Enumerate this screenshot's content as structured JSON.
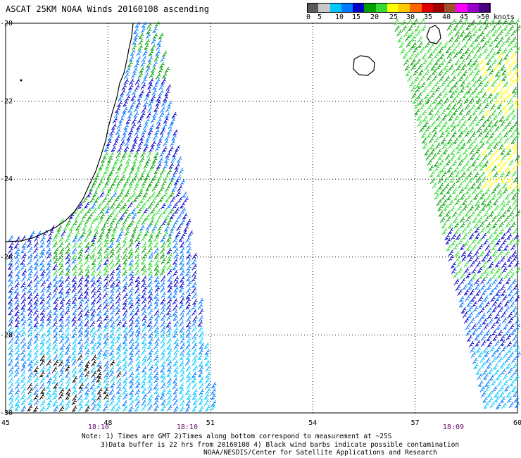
{
  "title": "ASCAT 25KM NOAA Winds 20160108 ascending",
  "legend": {
    "labels": [
      "0",
      "5",
      "10",
      "15",
      "20",
      "25",
      "30",
      "35",
      "40",
      "45",
      ">50 knots"
    ],
    "colors": [
      "#5a5a5a",
      "#c8c8c8",
      "#00c8ff",
      "#0078ff",
      "#0000c8",
      "#00a000",
      "#32dc32",
      "#ffff00",
      "#ffc800",
      "#ff6400",
      "#dc0000",
      "#a00000",
      "#a05028",
      "#ff00ff",
      "#9600c8",
      "#4b0082"
    ]
  },
  "map": {
    "x_ticks": [
      "45",
      "48",
      "51",
      "54",
      "57",
      "60"
    ],
    "y_ticks": [
      "-20",
      "-22",
      "-24",
      "-26",
      "-28",
      "-30"
    ],
    "times": [
      {
        "label": "18:10",
        "lon": 47.7
      },
      {
        "label": "18:10",
        "lon": 50.3
      },
      {
        "label": "18:09",
        "lon": 58.1
      }
    ]
  },
  "notes": {
    "line1": "Note: 1) Times are GMT 2)Times along bottom correspond to measurement at ~25S",
    "line2": "3)Data buffer is 22 hrs from 20160108 4) Black wind barbs indicate possible contamination",
    "line3": "NOAA/NESDIS/Center for Satellite Applications and Research"
  },
  "wind_colors": {
    "contaminated": "#000000",
    "light": "#00c8ff",
    "moderate": "#0078ff",
    "fresh": "#0000c8",
    "strong": "#00a000",
    "strong_light": "#32dc32",
    "gale": "#ffff00"
  }
}
